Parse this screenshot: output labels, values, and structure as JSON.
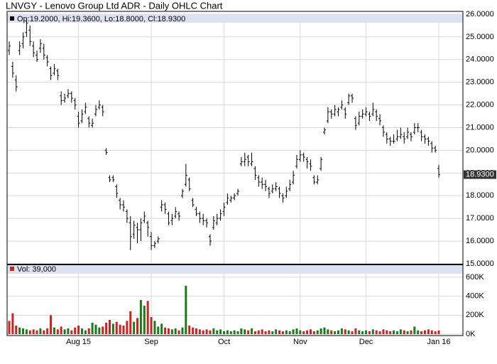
{
  "chart_data": {
    "type": "ohlc",
    "title": "LNVGY - Lenovo Group Ltd ADR - Daily OHLC Chart",
    "info": "Op:19.2000, Hi:19.3600, Lo:18.8000, Cl:18.9300",
    "last_label": "18.9300",
    "volume_label": "Vol: 39,000",
    "up_color": "#1a7a1a",
    "down_color": "#cc2222",
    "grid": true,
    "ylim": [
      15,
      26
    ],
    "yticks": [
      {
        "value": 15,
        "label": "15.0000"
      },
      {
        "value": 16,
        "label": "16.0000"
      },
      {
        "value": 17,
        "label": "17.0000"
      },
      {
        "value": 18,
        "label": "18.0000"
      },
      {
        "value": 19,
        "label": "19.0000"
      },
      {
        "value": 20,
        "label": "20.0000"
      },
      {
        "value": 21,
        "label": "21.0000"
      },
      {
        "value": 22,
        "label": "22.0000"
      },
      {
        "value": 23,
        "label": "23.0000"
      },
      {
        "value": 24,
        "label": "24.0000"
      },
      {
        "value": 25,
        "label": "25.0000"
      },
      {
        "value": 26,
        "label": "26.0000"
      }
    ],
    "volume_ylim": [
      0,
      720000
    ],
    "volume_ticks": [
      {
        "value": 0,
        "label": "0K"
      },
      {
        "value": 200000,
        "label": "200K"
      },
      {
        "value": 400000,
        "label": "400K"
      },
      {
        "value": 600000,
        "label": "600K"
      }
    ],
    "categories": [
      null,
      null,
      null,
      null,
      null,
      null,
      null,
      null,
      null,
      null,
      null,
      null,
      null,
      null,
      null,
      null,
      null,
      null,
      null,
      null,
      "Aug 15",
      null,
      null,
      null,
      null,
      null,
      null,
      null,
      null,
      null,
      null,
      null,
      null,
      null,
      null,
      null,
      null,
      null,
      null,
      null,
      null,
      "Sep",
      null,
      null,
      null,
      null,
      null,
      null,
      null,
      null,
      null,
      null,
      null,
      null,
      null,
      null,
      null,
      null,
      null,
      null,
      null,
      null,
      "Oct",
      null,
      null,
      null,
      null,
      null,
      null,
      null,
      null,
      null,
      null,
      null,
      null,
      null,
      null,
      null,
      null,
      null,
      null,
      null,
      null,
      null,
      "Nov",
      null,
      null,
      null,
      null,
      null,
      null,
      null,
      null,
      null,
      null,
      null,
      null,
      null,
      null,
      null,
      null,
      null,
      null,
      "Dec",
      null,
      null,
      null,
      null,
      null,
      null,
      null,
      null,
      null,
      null,
      null,
      null,
      null,
      null,
      null,
      null,
      null,
      null,
      null,
      null,
      "Jan 16"
    ],
    "ohlc": [
      [
        24.4,
        24.8,
        24.2,
        24.6
      ],
      [
        23.7,
        23.9,
        23.2,
        23.4
      ],
      [
        23.1,
        23.3,
        22.6,
        22.8
      ],
      [
        24.4,
        24.8,
        24.2,
        24.6
      ],
      [
        24.7,
        25.2,
        24.5,
        25.0
      ],
      [
        25.2,
        25.8,
        25.0,
        25.6
      ],
      [
        25.3,
        25.5,
        24.6,
        24.8
      ],
      [
        24.6,
        24.8,
        24.1,
        24.3
      ],
      [
        24.2,
        24.4,
        23.9,
        24.0
      ],
      [
        24.5,
        24.9,
        24.3,
        24.7
      ],
      [
        24.5,
        24.7,
        24.0,
        24.2
      ],
      [
        24.1,
        24.2,
        23.7,
        23.9
      ],
      [
        23.6,
        23.7,
        23.1,
        23.3
      ],
      [
        23.4,
        23.8,
        23.3,
        23.6
      ],
      [
        23.5,
        23.6,
        23.1,
        23.3
      ],
      [
        22.4,
        22.6,
        22.0,
        22.2
      ],
      [
        22.2,
        22.5,
        22.1,
        22.3
      ],
      [
        22.4,
        22.7,
        22.3,
        22.5
      ],
      [
        22.5,
        22.6,
        22.1,
        22.3
      ],
      [
        22.2,
        22.3,
        21.8,
        22.0
      ],
      [
        21.5,
        21.7,
        21.0,
        21.2
      ],
      [
        21.3,
        21.8,
        21.2,
        21.6
      ],
      [
        21.7,
        22.1,
        21.6,
        21.9
      ],
      [
        21.4,
        21.5,
        21.0,
        21.2
      ],
      [
        21.1,
        21.4,
        21.0,
        21.2
      ],
      [
        21.6,
        22.0,
        21.5,
        21.8
      ],
      [
        21.9,
        22.2,
        21.8,
        22.0
      ],
      [
        21.9,
        22.0,
        21.5,
        21.7
      ],
      [
        20.0,
        20.1,
        19.8,
        19.9
      ],
      [
        18.8,
        18.9,
        18.6,
        18.7
      ],
      [
        18.8,
        18.9,
        18.6,
        18.7
      ],
      [
        18.4,
        18.5,
        17.9,
        18.1
      ],
      [
        17.8,
        17.9,
        17.4,
        17.6
      ],
      [
        17.6,
        17.8,
        17.3,
        17.5
      ],
      [
        17.3,
        17.4,
        16.8,
        17.0
      ],
      [
        16.8,
        17.1,
        15.6,
        16.2
      ],
      [
        16.3,
        16.9,
        16.1,
        16.7
      ],
      [
        16.6,
        16.8,
        15.9,
        16.5
      ],
      [
        16.5,
        17.0,
        16.0,
        16.8
      ],
      [
        16.9,
        17.3,
        16.8,
        17.1
      ],
      [
        16.8,
        16.9,
        16.2,
        16.6
      ],
      [
        16.2,
        16.4,
        15.6,
        15.8
      ],
      [
        15.8,
        16.0,
        15.7,
        15.9
      ],
      [
        16.0,
        16.2,
        15.9,
        16.1
      ],
      [
        17.5,
        17.8,
        17.3,
        17.6
      ],
      [
        17.6,
        17.7,
        17.2,
        17.4
      ],
      [
        17.2,
        17.3,
        16.7,
        16.8
      ],
      [
        16.9,
        17.2,
        16.7,
        17.0
      ],
      [
        17.1,
        17.5,
        17.0,
        17.3
      ],
      [
        17.2,
        17.3,
        16.9,
        17.1
      ],
      [
        18.0,
        18.3,
        17.9,
        18.2
      ],
      [
        18.5,
        19.4,
        18.4,
        18.9
      ],
      [
        18.7,
        18.8,
        18.2,
        18.3
      ],
      [
        17.8,
        17.9,
        17.5,
        17.6
      ],
      [
        17.4,
        17.5,
        17.1,
        17.2
      ],
      [
        17.2,
        17.3,
        16.8,
        17.0
      ],
      [
        17.0,
        17.2,
        16.7,
        16.9
      ],
      [
        16.9,
        17.0,
        16.6,
        16.8
      ],
      [
        16.2,
        16.3,
        15.8,
        16.0
      ],
      [
        16.6,
        17.1,
        16.5,
        16.9
      ],
      [
        16.8,
        17.2,
        16.7,
        17.0
      ],
      [
        17.0,
        17.4,
        16.9,
        17.2
      ],
      [
        17.3,
        17.7,
        17.1,
        17.5
      ],
      [
        17.7,
        18.1,
        17.6,
        17.9
      ],
      [
        17.8,
        18.0,
        17.7,
        17.9
      ],
      [
        17.9,
        18.1,
        17.8,
        18.0
      ],
      [
        18.1,
        18.3,
        18.0,
        18.2
      ],
      [
        19.4,
        19.7,
        19.3,
        19.5
      ],
      [
        19.5,
        19.9,
        19.3,
        19.6
      ],
      [
        19.7,
        19.8,
        19.3,
        19.5
      ],
      [
        19.4,
        19.9,
        19.3,
        19.5
      ],
      [
        19.2,
        19.3,
        18.7,
        18.9
      ],
      [
        18.8,
        18.9,
        18.4,
        18.6
      ],
      [
        18.6,
        18.8,
        18.3,
        18.5
      ],
      [
        18.5,
        18.7,
        18.2,
        18.4
      ],
      [
        18.3,
        18.4,
        17.9,
        18.1
      ],
      [
        18.2,
        18.5,
        18.1,
        18.3
      ],
      [
        18.3,
        18.6,
        18.2,
        18.4
      ],
      [
        18.3,
        18.4,
        17.9,
        18.1
      ],
      [
        18.0,
        18.1,
        17.7,
        17.9
      ],
      [
        18.0,
        18.4,
        17.9,
        18.2
      ],
      [
        18.3,
        18.7,
        18.2,
        18.5
      ],
      [
        18.6,
        19.1,
        18.5,
        18.9
      ],
      [
        19.3,
        19.8,
        19.2,
        19.6
      ],
      [
        19.6,
        20.0,
        19.5,
        19.8
      ],
      [
        19.8,
        19.9,
        19.5,
        19.7
      ],
      [
        19.6,
        19.7,
        19.2,
        19.5
      ],
      [
        19.4,
        19.6,
        19.1,
        19.3
      ],
      [
        18.8,
        18.9,
        18.5,
        18.6
      ],
      [
        18.6,
        18.9,
        18.5,
        18.7
      ],
      [
        19.2,
        19.7,
        19.1,
        19.6
      ],
      [
        20.8,
        21.0,
        20.7,
        20.9
      ],
      [
        21.3,
        21.9,
        21.2,
        21.7
      ],
      [
        21.7,
        21.8,
        21.4,
        21.6
      ],
      [
        21.6,
        22.0,
        21.5,
        21.8
      ],
      [
        21.7,
        21.9,
        21.5,
        21.8
      ],
      [
        21.9,
        22.2,
        21.8,
        22.0
      ],
      [
        21.8,
        21.9,
        21.4,
        21.6
      ],
      [
        22.1,
        22.5,
        22.0,
        22.4
      ],
      [
        22.4,
        22.5,
        22.1,
        22.3
      ],
      [
        21.4,
        21.5,
        20.9,
        21.1
      ],
      [
        21.2,
        21.7,
        21.1,
        21.5
      ],
      [
        21.5,
        21.8,
        21.4,
        21.6
      ],
      [
        21.6,
        21.9,
        21.5,
        21.7
      ],
      [
        21.6,
        21.7,
        21.3,
        21.5
      ],
      [
        21.6,
        22.1,
        21.5,
        21.8
      ],
      [
        21.7,
        21.8,
        21.3,
        21.5
      ],
      [
        21.4,
        21.6,
        21.1,
        21.3
      ],
      [
        21.0,
        21.1,
        20.6,
        20.8
      ],
      [
        20.7,
        20.8,
        20.3,
        20.5
      ],
      [
        20.5,
        20.6,
        20.2,
        20.4
      ],
      [
        20.4,
        20.7,
        20.3,
        20.4
      ],
      [
        20.5,
        20.9,
        20.4,
        20.6
      ],
      [
        20.6,
        21.0,
        20.5,
        20.7
      ],
      [
        20.6,
        20.8,
        20.3,
        20.5
      ],
      [
        20.6,
        21.0,
        20.5,
        20.8
      ],
      [
        20.7,
        20.8,
        20.4,
        20.6
      ],
      [
        20.8,
        21.2,
        20.7,
        21.0
      ],
      [
        21.0,
        21.2,
        20.8,
        21.0
      ],
      [
        20.8,
        20.9,
        20.4,
        20.6
      ],
      [
        20.6,
        20.7,
        20.3,
        20.5
      ],
      [
        20.5,
        20.6,
        20.2,
        20.4
      ],
      [
        20.3,
        20.4,
        19.9,
        20.1
      ],
      [
        20.1,
        20.2,
        19.9,
        20.0
      ],
      [
        19.2,
        19.36,
        18.8,
        18.93
      ]
    ],
    "volume": [
      140000,
      220000,
      90000,
      70000,
      60000,
      50000,
      40000,
      50000,
      40000,
      60000,
      40000,
      60000,
      200000,
      70000,
      50000,
      80000,
      50000,
      60000,
      40000,
      70000,
      90000,
      60000,
      40000,
      60000,
      120000,
      100000,
      70000,
      80000,
      120000,
      150000,
      110000,
      130000,
      100000,
      90000,
      140000,
      240000,
      130000,
      170000,
      360000,
      300000,
      350000,
      180000,
      140000,
      80000,
      110000,
      70000,
      60000,
      50000,
      60000,
      40000,
      70000,
      510000,
      90000,
      70000,
      60000,
      50000,
      40000,
      50000,
      40000,
      60000,
      40000,
      50000,
      30000,
      40000,
      30000,
      40000,
      30000,
      60000,
      50000,
      40000,
      60000,
      30000,
      40000,
      50000,
      30000,
      40000,
      30000,
      50000,
      40000,
      30000,
      40000,
      30000,
      50000,
      60000,
      40000,
      30000,
      40000,
      50000,
      30000,
      40000,
      60000,
      70000,
      50000,
      40000,
      30000,
      40000,
      60000,
      50000,
      40000,
      30000,
      60000,
      40000,
      30000,
      40000,
      30000,
      50000,
      40000,
      30000,
      50000,
      40000,
      30000,
      40000,
      30000,
      50000,
      40000,
      30000,
      40000,
      80000,
      40000,
      30000,
      40000,
      50000,
      40000,
      30000,
      39000
    ]
  }
}
